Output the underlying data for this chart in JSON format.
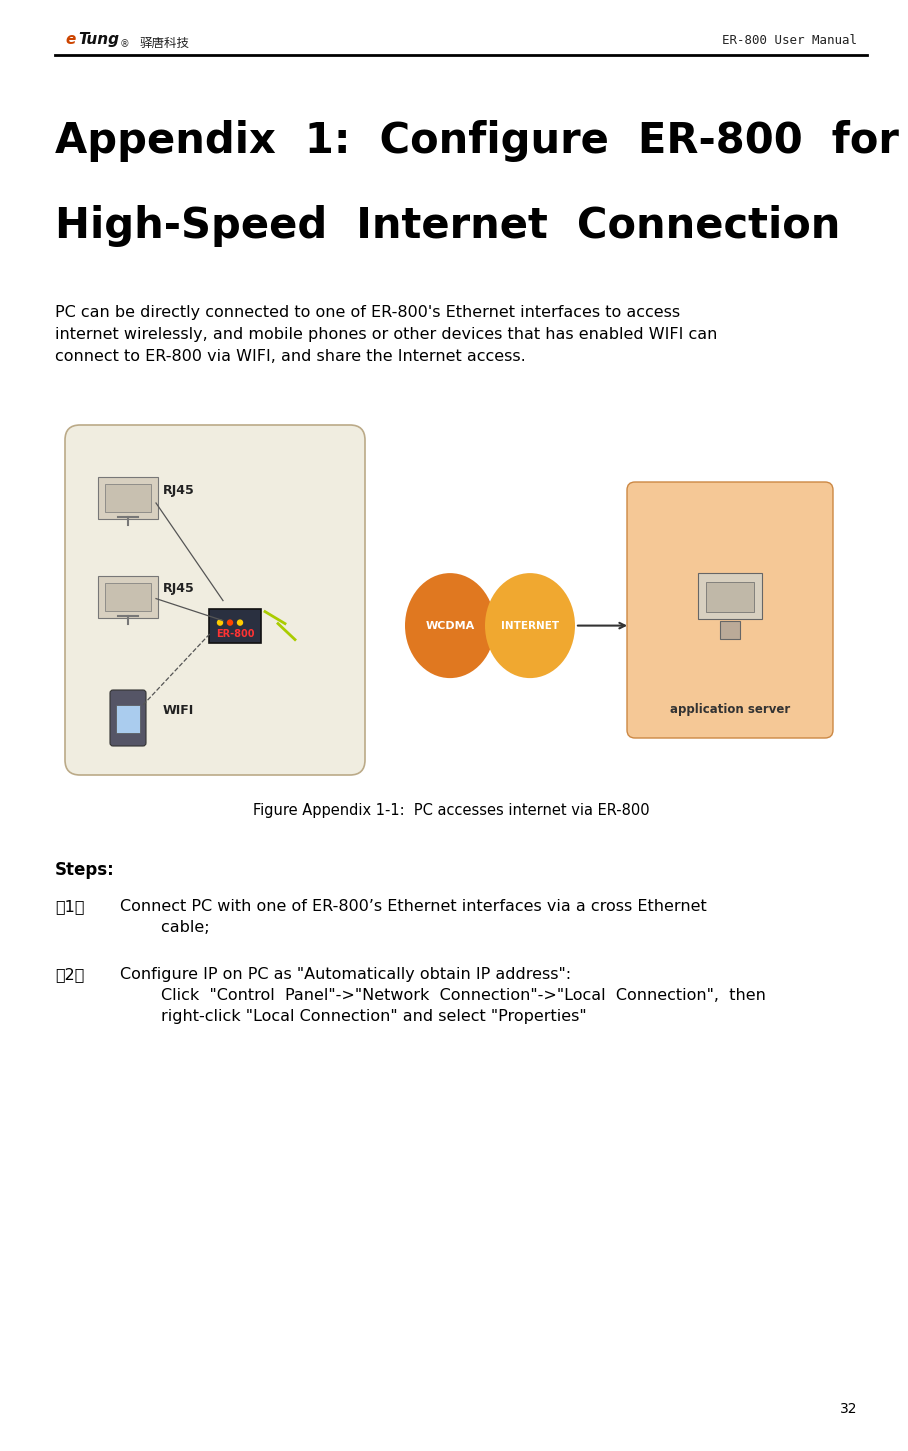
{
  "page_width": 8.82,
  "page_height": 14.31,
  "bg_color": "#ffffff",
  "header_logo_text": "eTung",
  "header_chinese": "驿唐科技",
  "header_right": "ER-800 User Manual",
  "title_line1": "Appendix  1:  Configure  ER-800  for",
  "title_line2": "High-Speed  Internet  Connection",
  "title_fontsize": 30,
  "body_text": "PC can be directly connected to one of ER-800's Ethernet interfaces to access\ninternet wirelessly, and mobile phones or other devices that has enabled WIFI can\nconnect to ER-800 via WIFI, and share the Internet access.",
  "body_fontsize": 11.5,
  "figure_caption": "Figure Appendix 1-1:  PC accesses internet via ER-800",
  "steps_title": "Steps:",
  "step1_label": "（1）",
  "step1_text": "Connect PC with one of ER-800’s Ethernet interfaces via a cross Ethernet\n        cable;",
  "step2_label": "（2）",
  "step2_text": "Configure IP on PC as \"Automatically obtain IP address\":\n        Click  \"Control  Panel\"->\"Network  Connection\"->\"Local  Connection\",  then\n        right-click \"Local Connection\" and select \"Properties\"",
  "page_number": "32",
  "left_panel_color": "#f0ede0",
  "right_panel_color": "#f5c896",
  "wcdma_color": "#e07820",
  "internet_color": "#f0a830"
}
